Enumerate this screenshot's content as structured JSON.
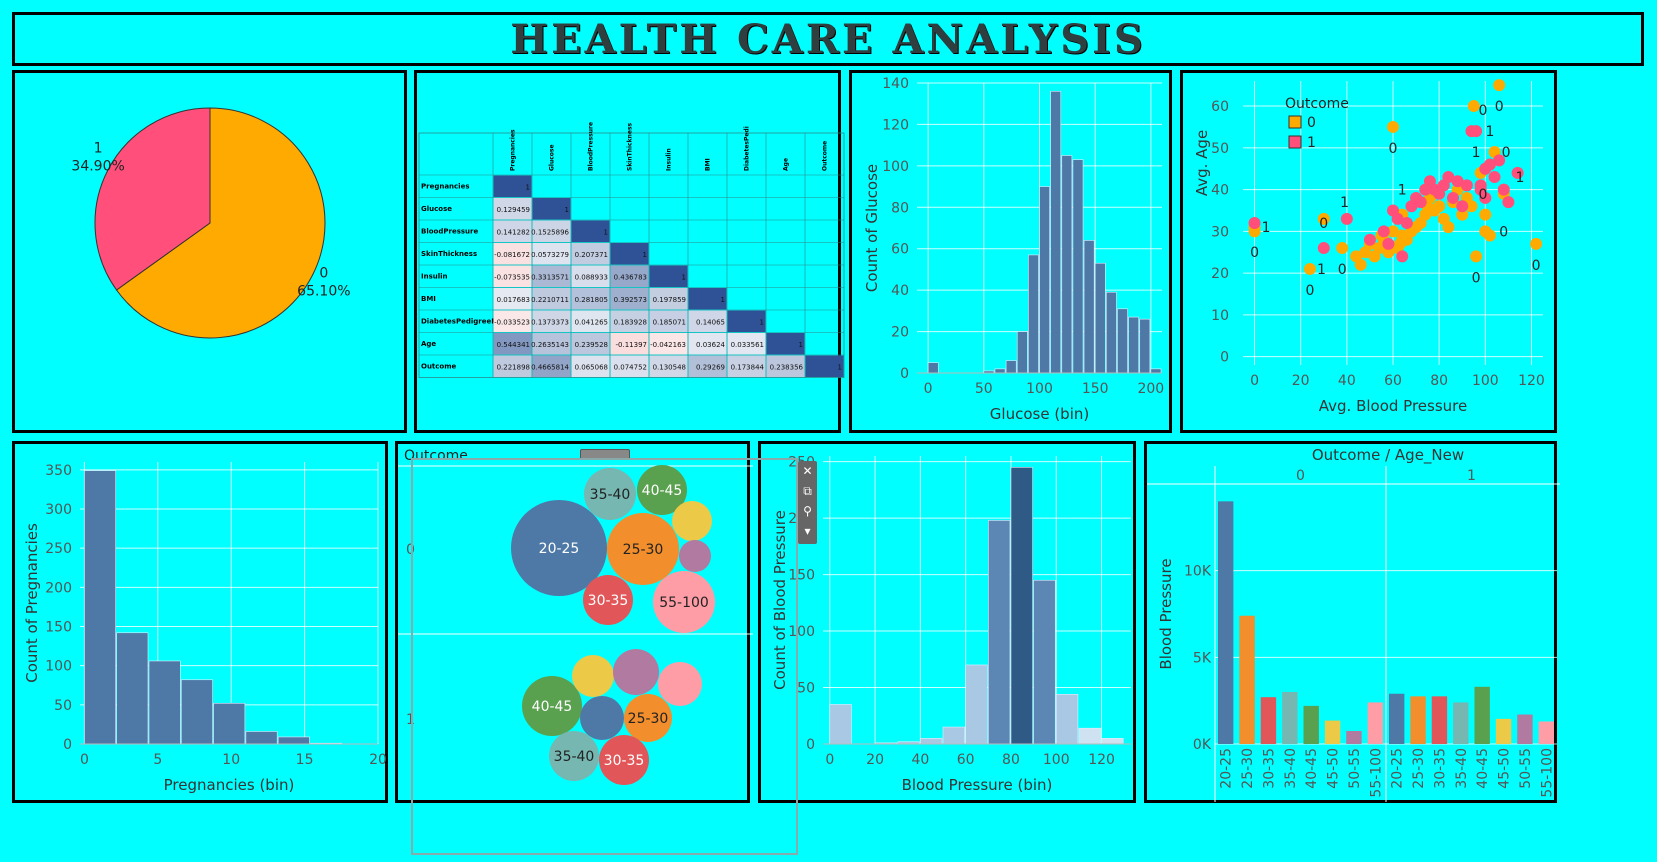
{
  "dashboard": {
    "title": "HEALTH CARE ANALYSIS"
  },
  "colors": {
    "background": "#00FFFF",
    "orange": "#FFA500",
    "pink": "#FF4F7A",
    "steel": "#4E79A7"
  },
  "chart_data": [
    {
      "type": "pie",
      "slices": [
        {
          "label": "0",
          "percent_label": "65.10%",
          "value": 65.1,
          "color": "#FFAA00"
        },
        {
          "label": "1",
          "percent_label": "34.90%",
          "value": 34.9,
          "color": "#FF4F7A"
        }
      ]
    },
    {
      "type": "table",
      "columns": [
        "Pregnancies",
        "Glucose",
        "BloodPressure",
        "SkinThickness",
        "Insulin",
        "BMI",
        "DiabetesPedi",
        "Age",
        "Outcome"
      ],
      "rows": [
        {
          "label": "Pregnancies",
          "cells": [
            "1",
            "",
            "",
            "",
            "",
            "",
            "",
            "",
            ""
          ]
        },
        {
          "label": "Glucose",
          "cells": [
            "0.129459",
            "1",
            "",
            "",
            "",
            "",
            "",
            "",
            ""
          ]
        },
        {
          "label": "BloodPressure",
          "cells": [
            "0.141282",
            "0.1525896",
            "1",
            "",
            "",
            "",
            "",
            "",
            ""
          ]
        },
        {
          "label": "SkinThickness",
          "cells": [
            "-0.081672",
            "0.0573279",
            "0.207371",
            "1",
            "",
            "",
            "",
            "",
            ""
          ]
        },
        {
          "label": "Insulin",
          "cells": [
            "-0.073535",
            "0.3313571",
            "0.088933",
            "0.436783",
            "1",
            "",
            "",
            "",
            ""
          ]
        },
        {
          "label": "BMI",
          "cells": [
            "0.017683",
            "0.2210711",
            "0.281805",
            "0.392573",
            "0.197859",
            "1",
            "",
            "",
            ""
          ]
        },
        {
          "label": "DiabetesPedigreeFun",
          "cells": [
            "-0.033523",
            "0.1373373",
            "0.041265",
            "0.183928",
            "0.185071",
            "0.14065",
            "1",
            "",
            ""
          ]
        },
        {
          "label": "Age",
          "cells": [
            "0.544341",
            "0.2635143",
            "0.239528",
            "-0.11397",
            "-0.042163",
            "0.03624",
            "0.033561",
            "1",
            ""
          ]
        },
        {
          "label": "Outcome",
          "cells": [
            "0.221898",
            "0.4665814",
            "0.065068",
            "0.074752",
            "0.130548",
            "0.29269",
            "0.173844",
            "0.238356",
            "1"
          ]
        }
      ],
      "values": [
        [
          1,
          null,
          null,
          null,
          null,
          null,
          null,
          null,
          null
        ],
        [
          0.129459,
          1,
          null,
          null,
          null,
          null,
          null,
          null,
          null
        ],
        [
          0.141282,
          0.1525896,
          1,
          null,
          null,
          null,
          null,
          null,
          null
        ],
        [
          -0.081672,
          0.0573279,
          0.207371,
          1,
          null,
          null,
          null,
          null,
          null
        ],
        [
          -0.073535,
          0.3313571,
          0.088933,
          0.436783,
          1,
          null,
          null,
          null,
          null
        ],
        [
          0.017683,
          0.2210711,
          0.281805,
          0.392573,
          0.197859,
          1,
          null,
          null,
          null
        ],
        [
          -0.033523,
          0.1373373,
          0.041265,
          0.183928,
          0.185071,
          0.14065,
          1,
          null,
          null
        ],
        [
          0.544341,
          0.2635143,
          0.239528,
          -0.11397,
          -0.042163,
          0.03624,
          0.033561,
          1,
          null
        ],
        [
          0.221898,
          0.4665814,
          0.065068,
          0.074752,
          0.130548,
          0.29269,
          0.173844,
          0.238356,
          1
        ]
      ]
    },
    {
      "type": "bar",
      "title": "",
      "xlabel": "Glucose (bin)",
      "ylabel": "Count of Glucose",
      "bin_width": 10,
      "bins": [
        0,
        50,
        60,
        70,
        80,
        90,
        100,
        110,
        120,
        130,
        140,
        150,
        160,
        170,
        180,
        190,
        200
      ],
      "values": [
        5,
        1,
        2,
        6,
        20,
        57,
        90,
        136,
        105,
        103,
        64,
        53,
        39,
        31,
        27,
        26,
        2
      ],
      "xticks": [
        0,
        50,
        100,
        150,
        200
      ],
      "xlim": [
        -10,
        210
      ],
      "yticks": [
        0,
        20,
        40,
        60,
        80,
        100,
        120,
        140
      ],
      "ylim": [
        0,
        140
      ]
    },
    {
      "type": "scatter",
      "xlabel": "Avg. Blood Pressure",
      "ylabel": "Avg. Age",
      "legend_title": "Outcome",
      "legend": [
        {
          "name": "0",
          "color": "#FFAA00"
        },
        {
          "name": "1",
          "color": "#FF4F7A"
        }
      ],
      "xticks": [
        0,
        20,
        40,
        60,
        80,
        100,
        120
      ],
      "xlim": [
        -5,
        125
      ],
      "yticks": [
        0,
        10,
        20,
        30,
        40,
        50,
        60
      ],
      "ylim": [
        -2,
        66
      ],
      "series": [
        {
          "name": "0",
          "color": "#FFAA00",
          "points": [
            [
              0,
              30
            ],
            [
              0,
              31
            ],
            [
              24,
              21
            ],
            [
              30,
              33
            ],
            [
              38,
              26
            ],
            [
              44,
              24
            ],
            [
              46,
              22
            ],
            [
              48,
              25
            ],
            [
              50,
              27
            ],
            [
              52,
              24
            ],
            [
              54,
              26
            ],
            [
              55,
              29
            ],
            [
              56,
              28
            ],
            [
              58,
              25
            ],
            [
              60,
              30
            ],
            [
              60,
              55
            ],
            [
              62,
              26
            ],
            [
              63,
              27
            ],
            [
              64,
              29
            ],
            [
              64,
              34
            ],
            [
              66,
              28
            ],
            [
              68,
              30
            ],
            [
              70,
              31
            ],
            [
              72,
              32
            ],
            [
              74,
              34
            ],
            [
              75,
              36
            ],
            [
              76,
              38
            ],
            [
              78,
              35
            ],
            [
              80,
              36
            ],
            [
              82,
              33
            ],
            [
              84,
              31
            ],
            [
              86,
              37
            ],
            [
              88,
              40
            ],
            [
              90,
              34
            ],
            [
              92,
              38
            ],
            [
              94,
              36
            ],
            [
              95,
              60
            ],
            [
              96,
              24
            ],
            [
              98,
              44
            ],
            [
              100,
              30
            ],
            [
              100,
              34
            ],
            [
              102,
              29
            ],
            [
              104,
              49
            ],
            [
              106,
              65
            ],
            [
              108,
              39
            ],
            [
              122,
              27
            ]
          ]
        },
        {
          "name": "1",
          "color": "#FF4F7A",
          "points": [
            [
              0,
              32
            ],
            [
              30,
              26
            ],
            [
              40,
              33
            ],
            [
              50,
              28
            ],
            [
              56,
              30
            ],
            [
              58,
              27
            ],
            [
              60,
              35
            ],
            [
              62,
              33
            ],
            [
              64,
              24
            ],
            [
              66,
              32
            ],
            [
              68,
              36
            ],
            [
              70,
              38
            ],
            [
              72,
              37
            ],
            [
              74,
              40
            ],
            [
              76,
              42
            ],
            [
              78,
              40
            ],
            [
              80,
              39
            ],
            [
              82,
              41
            ],
            [
              84,
              43
            ],
            [
              86,
              38
            ],
            [
              88,
              42
            ],
            [
              90,
              36
            ],
            [
              92,
              41
            ],
            [
              94,
              54
            ],
            [
              96,
              54
            ],
            [
              98,
              40
            ],
            [
              100,
              38
            ],
            [
              100,
              45
            ],
            [
              102,
              46
            ],
            [
              104,
              43
            ],
            [
              106,
              47
            ],
            [
              108,
              40
            ],
            [
              110,
              37
            ],
            [
              114,
              44
            ],
            [
              98,
              41
            ]
          ]
        }
      ],
      "annotations": [
        {
          "text": "0",
          "x": 0,
          "y": 25
        },
        {
          "text": "1",
          "x": 5,
          "y": 31
        },
        {
          "text": "0",
          "x": 24,
          "y": 16
        },
        {
          "text": "1",
          "x": 29,
          "y": 21
        },
        {
          "text": "0",
          "x": 30,
          "y": 32
        },
        {
          "text": "1",
          "x": 39,
          "y": 37
        },
        {
          "text": "0",
          "x": 38,
          "y": 21
        },
        {
          "text": "0",
          "x": 60,
          "y": 50
        },
        {
          "text": "1",
          "x": 64,
          "y": 40
        },
        {
          "text": "0",
          "x": 96,
          "y": 19
        },
        {
          "text": "0",
          "x": 99,
          "y": 39
        },
        {
          "text": "0",
          "x": 99,
          "y": 59
        },
        {
          "text": "1",
          "x": 102,
          "y": 54
        },
        {
          "text": "1",
          "x": 96,
          "y": 49
        },
        {
          "text": "0",
          "x": 106,
          "y": 60
        },
        {
          "text": "0",
          "x": 109,
          "y": 49
        },
        {
          "text": "0",
          "x": 108,
          "y": 30
        },
        {
          "text": "1",
          "x": 115,
          "y": 43
        },
        {
          "text": "0",
          "x": 122,
          "y": 22
        }
      ]
    },
    {
      "type": "bar",
      "xlabel": "Pregnancies (bin)",
      "ylabel": "Count of Pregnancies",
      "bin_width": 2.2,
      "bins": [
        0,
        2.2,
        4.4,
        6.6,
        8.8,
        11,
        13.2,
        15.4
      ],
      "values": [
        349,
        142,
        106,
        82,
        52,
        16,
        9,
        1
      ],
      "xticks": [
        0,
        5,
        10,
        15,
        20
      ],
      "xlim": [
        -0.3,
        20
      ],
      "yticks": [
        0,
        50,
        100,
        150,
        200,
        250,
        300,
        350
      ],
      "ylim": [
        0,
        360
      ]
    },
    {
      "type": "bubble",
      "title": "Outcome",
      "rows": [
        "0",
        "1"
      ],
      "bubbles": [
        {
          "row": "0",
          "label": "20-25",
          "size": 48,
          "color": "#4E79A7"
        },
        {
          "row": "0",
          "label": "25-30",
          "size": 36,
          "color": "#F28E2B"
        },
        {
          "row": "0",
          "label": "35-40",
          "size": 26,
          "color": "#76B7B2"
        },
        {
          "row": "0",
          "label": "40-45",
          "size": 25,
          "color": "#59A14F"
        },
        {
          "row": "0",
          "label": "30-35",
          "size": 25,
          "color": "#E15759"
        },
        {
          "row": "0",
          "label": "55-100",
          "size": 31,
          "color": "#FF9DA7"
        },
        {
          "row": "0",
          "label": "",
          "size": 20,
          "color": "#EDC948"
        },
        {
          "row": "0",
          "label": "",
          "size": 16,
          "color": "#B07AA1"
        },
        {
          "row": "1",
          "label": "40-45",
          "size": 30,
          "color": "#59A14F"
        },
        {
          "row": "1",
          "label": "25-30",
          "size": 24,
          "color": "#F28E2B"
        },
        {
          "row": "1",
          "label": "35-40",
          "size": 25,
          "color": "#76B7B2"
        },
        {
          "row": "1",
          "label": "30-35",
          "size": 25,
          "color": "#E15759"
        },
        {
          "row": "1",
          "label": "",
          "size": 22,
          "color": "#4E79A7"
        },
        {
          "row": "1",
          "label": "",
          "size": 21,
          "color": "#EDC948"
        },
        {
          "row": "1",
          "label": "",
          "size": 23,
          "color": "#B07AA1"
        },
        {
          "row": "1",
          "label": "",
          "size": 22,
          "color": "#FF9DA7"
        }
      ]
    },
    {
      "type": "bar",
      "xlabel": "Blood Pressure (bin)",
      "ylabel": "Count of Blood Pressure",
      "bin_width": 10,
      "bins": [
        0,
        20,
        30,
        40,
        50,
        60,
        70,
        80,
        90,
        100,
        110,
        120
      ],
      "values": [
        35,
        1,
        2,
        5,
        15,
        70,
        198,
        245,
        145,
        44,
        14,
        5
      ],
      "colors": [
        "#A8C8E4",
        "#A8C8E4",
        "#A8C8E4",
        "#A8C8E4",
        "#A8C8E4",
        "#A8C8E4",
        "#5C87B4",
        "#2F5A86",
        "#5C87B4",
        "#A8C8E4",
        "#CFE2F2",
        "#CFE2F2"
      ],
      "xticks": [
        0,
        20,
        40,
        60,
        80,
        100,
        120
      ],
      "xlim": [
        -3,
        133
      ],
      "yticks": [
        0,
        50,
        100,
        150,
        200,
        250
      ],
      "ylim": [
        0,
        255
      ]
    },
    {
      "type": "bar",
      "title": "Outcome / Age_New",
      "groups": [
        "0",
        "1"
      ],
      "ylabel": "Blood Pressure",
      "categories": [
        "20-25",
        "25-30",
        "30-35",
        "35-40",
        "40-45",
        "45-50",
        "50-55",
        "55-100"
      ],
      "series": [
        {
          "group": "0",
          "values": [
            14000,
            7400,
            2700,
            3000,
            2200,
            1350,
            750,
            2400
          ]
        },
        {
          "group": "1",
          "values": [
            2900,
            2750,
            2750,
            2400,
            3300,
            1450,
            1700,
            1300
          ]
        }
      ],
      "colors": [
        "#4E79A7",
        "#F28E2B",
        "#E15759",
        "#76B7B2",
        "#59A14F",
        "#EDC948",
        "#B07AA1",
        "#FF9DA7"
      ],
      "yticks": [
        0,
        5000,
        10000
      ],
      "ytick_labels": [
        "0K",
        "5K",
        "10K"
      ],
      "ylim": [
        0,
        15000
      ]
    }
  ],
  "bubble_toolbar": {
    "close": "✕",
    "open": "⧉",
    "filter": "⚲",
    "more": "▾"
  }
}
